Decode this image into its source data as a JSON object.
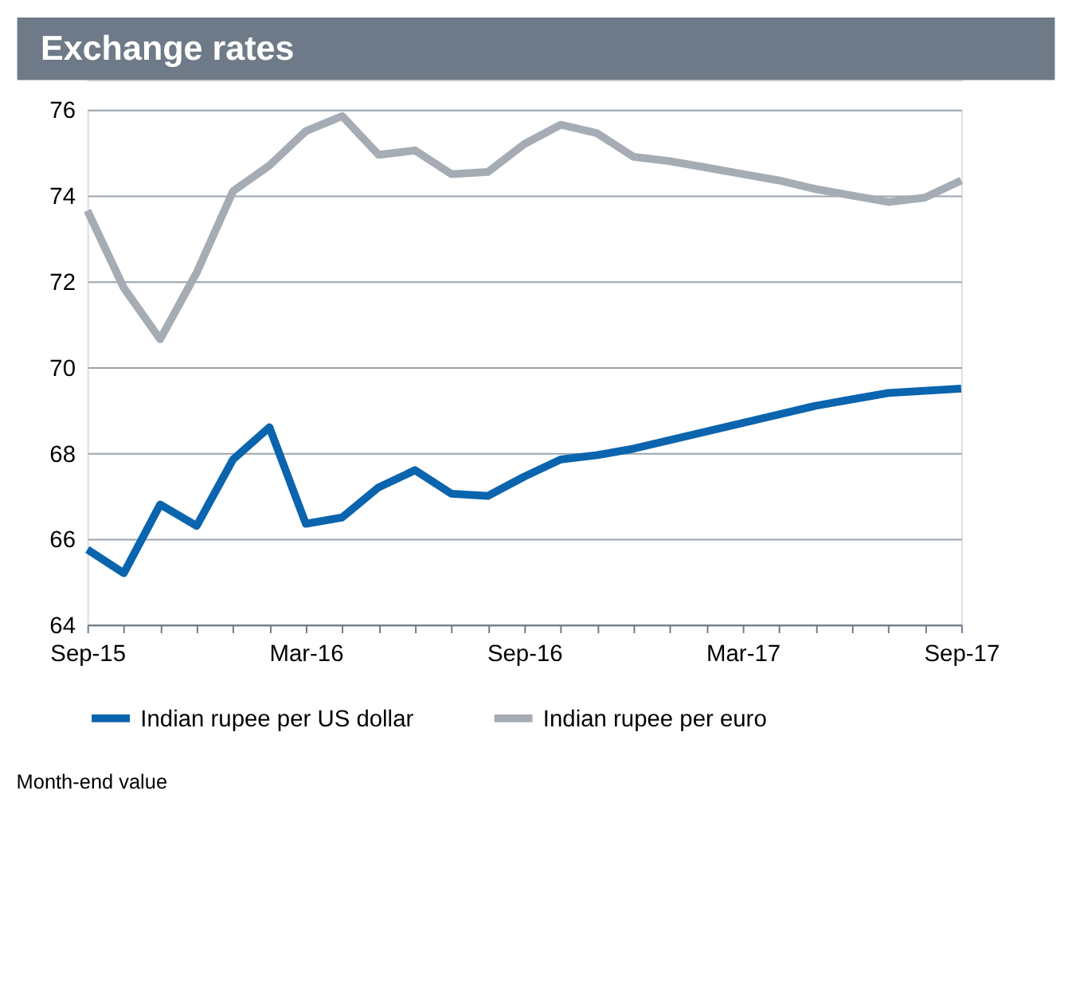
{
  "chart_data": {
    "type": "line",
    "title": "Exchange rates",
    "categories": [
      "Sep-15",
      null,
      null,
      null,
      null,
      null,
      "Mar-16",
      null,
      null,
      null,
      null,
      null,
      "Sep-16",
      null,
      null,
      null,
      null,
      null,
      "Mar-17",
      null,
      null,
      null,
      null,
      null,
      "Sep-17"
    ],
    "series": [
      {
        "name": "Indian rupee per US dollar",
        "color": "#0a64ae",
        "values": [
          65.75,
          65.2,
          66.8,
          66.3,
          67.85,
          68.6,
          66.35,
          66.5,
          67.2,
          67.6,
          67.05,
          67.0,
          67.45,
          67.85,
          67.95,
          68.1,
          68.3,
          68.5,
          68.7,
          68.9,
          69.1,
          69.25,
          69.4,
          69.45,
          69.5
        ]
      },
      {
        "name": "Indian rupee per euro",
        "color": "#a5acb3",
        "values": [
          73.65,
          71.85,
          70.65,
          72.2,
          74.1,
          74.7,
          75.5,
          75.85,
          74.95,
          75.05,
          74.5,
          74.55,
          75.2,
          75.65,
          75.45,
          74.9,
          74.8,
          74.65,
          74.5,
          74.35,
          74.15,
          74.0,
          73.85,
          73.95,
          74.35
        ]
      }
    ],
    "ylim": [
      64,
      76
    ],
    "yticks": [
      64,
      66,
      68,
      70,
      72,
      74,
      76
    ],
    "grid": "y",
    "legend": "bottom",
    "marker": "none",
    "line_style": "solid",
    "annotations": [
      "Month-end value"
    ]
  }
}
